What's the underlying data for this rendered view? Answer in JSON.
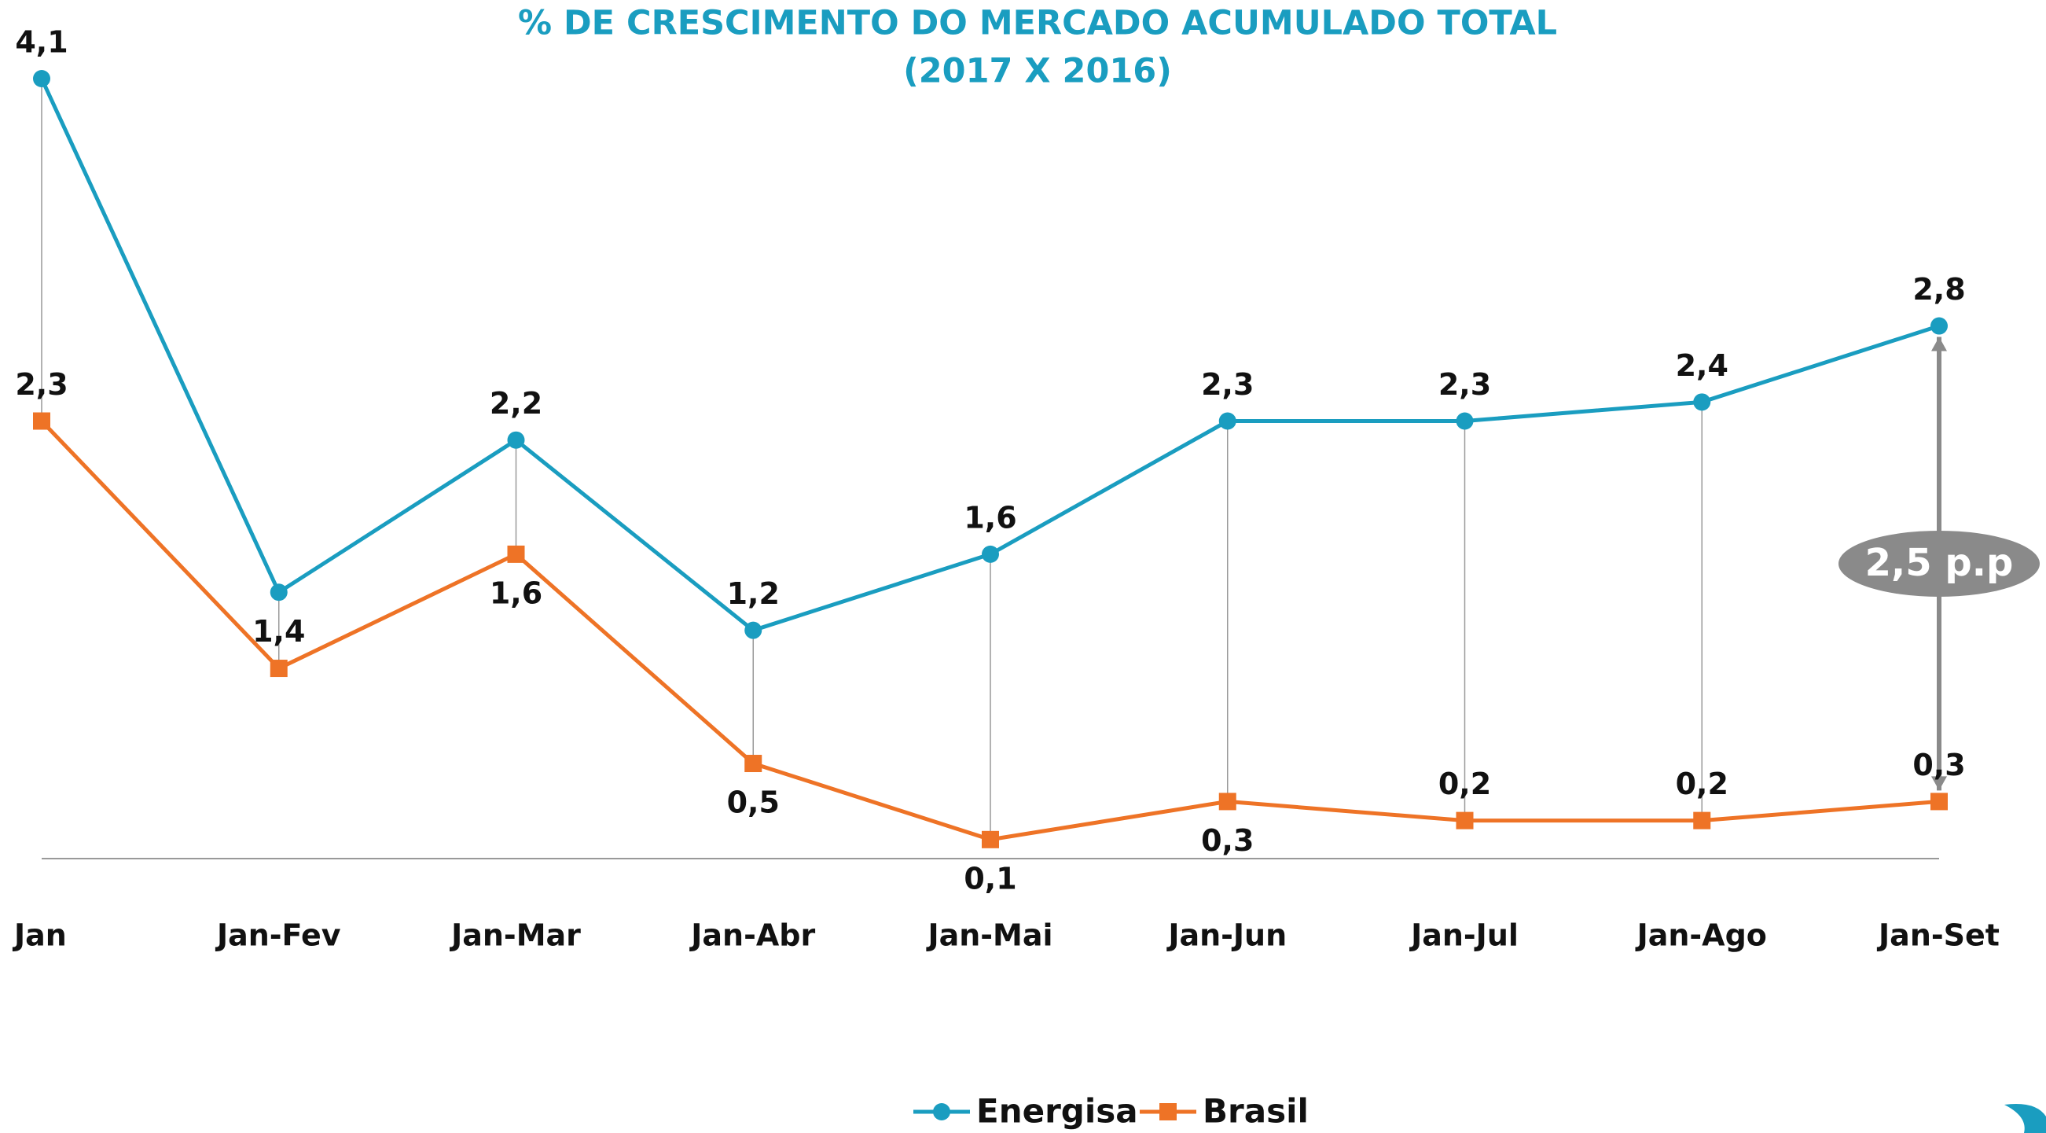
{
  "chart_data": {
    "type": "line",
    "title": "% DE CRESCIMENTO DO MERCADO ACUMULADO TOTAL",
    "subtitle": "(2017 X 2016)",
    "categories": [
      "Jan",
      "Jan-Fev",
      "Jan-Mar",
      "Jan-Abr",
      "Jan-Mai",
      "Jan-Jun",
      "Jan-Jul",
      "Jan-Ago",
      "Jan-Set"
    ],
    "series": [
      {
        "name": "Energisa",
        "color": "#1a9dc0",
        "marker": "circle",
        "values": [
          4.1,
          1.4,
          2.2,
          1.2,
          1.6,
          2.3,
          2.3,
          2.4,
          2.8
        ],
        "value_labels": [
          "4,1",
          "1,4",
          "2,2",
          "1,2",
          "1,6",
          "2,3",
          "2,3",
          "2,4",
          "2,8"
        ]
      },
      {
        "name": "Brasil",
        "color": "#ee7326",
        "marker": "square",
        "values": [
          2.3,
          1.0,
          1.6,
          0.5,
          0.1,
          0.3,
          0.2,
          0.2,
          0.3
        ],
        "value_labels": [
          "2,3",
          null,
          "1,6",
          "0,5",
          "0,1",
          "0,3",
          "0,2",
          "0,2",
          "0,3"
        ]
      }
    ],
    "ylim": [
      0,
      4.1
    ],
    "annotation": "2,5 p.p",
    "legend": "bottom"
  }
}
